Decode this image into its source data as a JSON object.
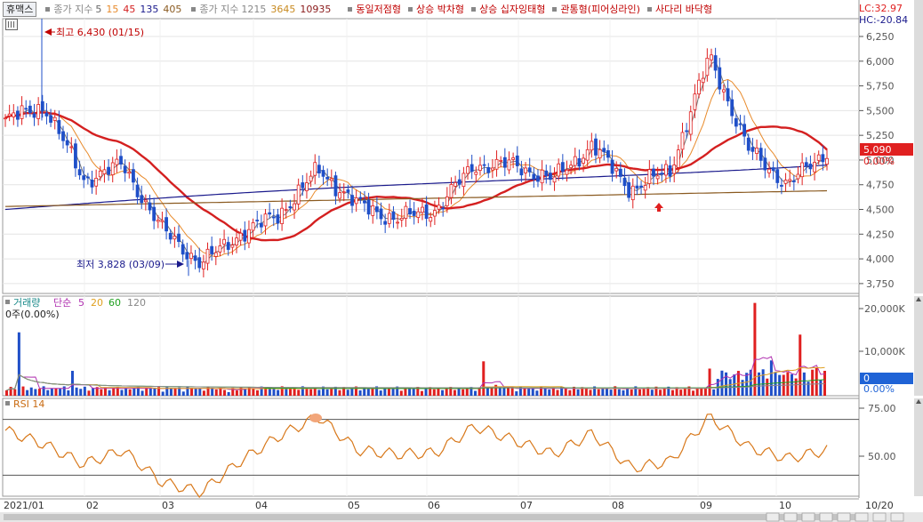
{
  "legend": {
    "stock_name": "휴맥스",
    "price_indicator": "종가 지수",
    "price_periods": [
      {
        "label": "5",
        "color": "#666666"
      },
      {
        "label": "15",
        "color": "#e88a2a"
      },
      {
        "label": "45",
        "color": "#d42020"
      },
      {
        "label": "135",
        "color": "#1a1a8c"
      },
      {
        "label": "405",
        "color": "#8a5a20"
      }
    ],
    "price_indicator2": "종가 지수",
    "price_periods2": [
      {
        "label": "1215",
        "color": "#888888"
      },
      {
        "label": "3645",
        "color": "#c88a20"
      },
      {
        "label": "10935",
        "color": "#8a1a1a"
      }
    ],
    "patterns": [
      "동일저점형",
      "상승 박차형",
      "상승 십자잉태형",
      "관통형(피어싱라인)",
      "사다리 바닥형"
    ]
  },
  "top_right": {
    "lc": "LC:32.97",
    "hc": "HC:-20.84"
  },
  "price_panel": {
    "y_ticks": [
      "6,250",
      "6,000",
      "5,750",
      "5,500",
      "5,250",
      "5,000",
      "4,750",
      "4,500",
      "4,250",
      "4,000",
      "3,750"
    ],
    "current_price": "5,090",
    "current_change": "0.00%",
    "high_label": "최고 6,430 (01/15)",
    "low_label": "최저 3,828 (03/09)"
  },
  "volume_panel": {
    "title": "거래량",
    "ma_label": "단순",
    "ma_periods": [
      {
        "label": "5",
        "color": "#b030b0"
      },
      {
        "label": "20",
        "color": "#e0a020"
      },
      {
        "label": "60",
        "color": "#20a020"
      },
      {
        "label": "120",
        "color": "#888888"
      }
    ],
    "volume_text": "0주(0.00%)",
    "y_ticks": [
      "20,000K",
      "10,000K"
    ],
    "current_value": "0",
    "current_pct": "0.00%"
  },
  "rsi_panel": {
    "title": "RSI 14",
    "y_ticks": [
      "75.00",
      "50.00"
    ]
  },
  "x_axis": {
    "labels": [
      "2021/01",
      "02",
      "03",
      "04",
      "05",
      "06",
      "07",
      "08",
      "09",
      "10",
      "10/20"
    ]
  },
  "chart_data": {
    "type": "candlestick",
    "ylim": [
      3650,
      6430
    ],
    "x": [
      "01/04",
      "01/18",
      "02/01",
      "02/16",
      "03/02",
      "03/15",
      "03/29",
      "04/12",
      "04/26",
      "05/10",
      "05/24",
      "06/07",
      "06/21",
      "07/05",
      "07/19",
      "08/02",
      "08/17",
      "08/30",
      "09/13",
      "09/27",
      "10/12",
      "10/20"
    ],
    "close": [
      5400,
      5550,
      4800,
      4950,
      4300,
      3950,
      4250,
      4450,
      4900,
      4550,
      4400,
      4500,
      4950,
      4950,
      4800,
      5150,
      4700,
      4900,
      6050,
      5100,
      4750,
      5090
    ],
    "high": 6430,
    "high_date": "01/15",
    "low": 3828,
    "low_date": "03/09",
    "volume_max": 20000,
    "volume_unit": "K",
    "rsi_period": 14,
    "rsi": [
      62,
      52,
      38,
      48,
      25,
      18,
      40,
      58,
      72,
      48,
      45,
      46,
      65,
      55,
      45,
      60,
      35,
      40,
      72,
      50,
      42,
      48
    ],
    "rsi_ylim": [
      15,
      85
    ]
  }
}
